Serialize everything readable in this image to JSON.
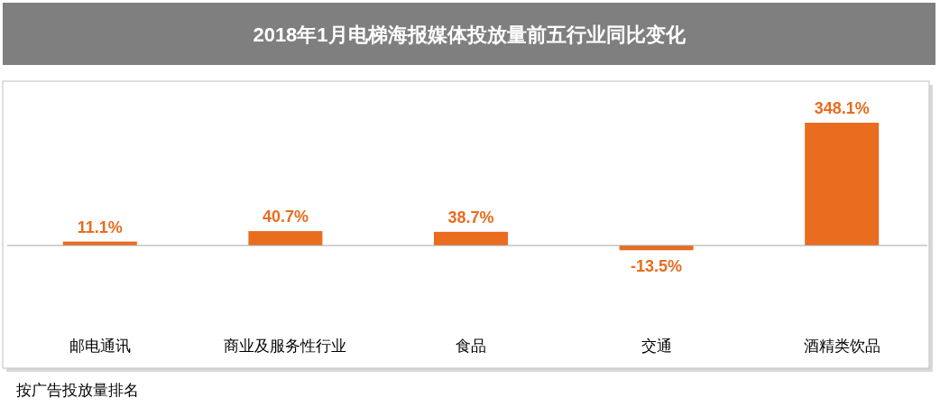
{
  "chart_data": {
    "type": "bar",
    "title": "2018年1月电梯海报媒体投放量前五行业同比变化",
    "categories": [
      "邮电通讯",
      "商业及服务性行业",
      "食品",
      "交通",
      "酒精类饮品"
    ],
    "values": [
      11.1,
      40.7,
      38.7,
      -13.5,
      348.1
    ],
    "value_labels": [
      "11.1%",
      "40.7%",
      "38.7%",
      "-13.5%",
      "348.1%"
    ],
    "color": "#e96c1f",
    "annotations": [
      "按广告投放量排名"
    ]
  }
}
